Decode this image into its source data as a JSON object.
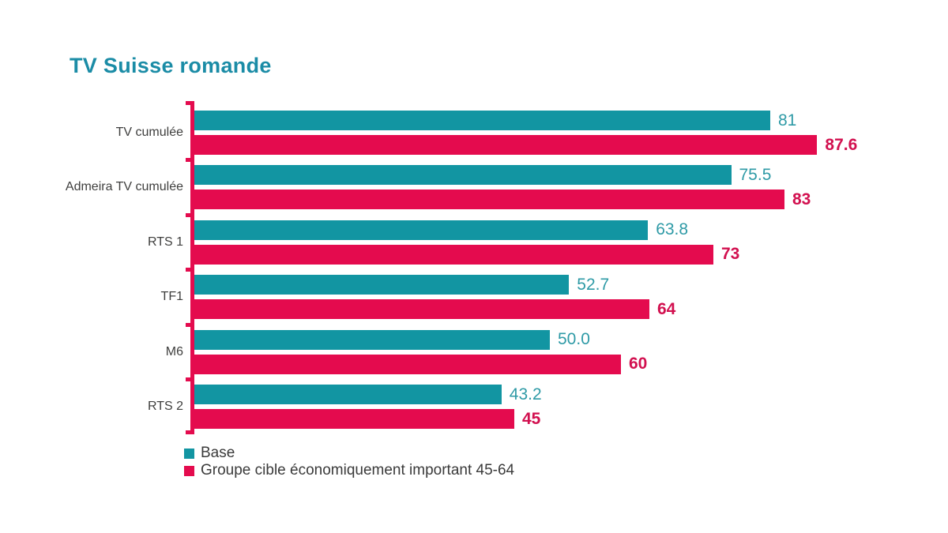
{
  "title": "TV Suisse romande",
  "colors": {
    "title_teal": "#1B8CA6",
    "bar_teal": "#1295A2",
    "bar_red": "#E40B4E",
    "axis_red": "#E40B4E",
    "value_teal": "#2E9AA6",
    "value_red": "#D2104F",
    "category_text": "#3F3F3E",
    "legend_text": "#3A3A3A"
  },
  "chart_data": {
    "type": "bar",
    "orientation": "horizontal",
    "title": "TV Suisse romande",
    "categories": [
      "TV cumulée",
      "Admeira TV cumulée",
      "RTS 1",
      "TF1",
      "M6",
      "RTS 2"
    ],
    "series": [
      {
        "name": "Base",
        "color": "#1295A2",
        "values": [
          81,
          75.5,
          63.8,
          52.7,
          50,
          43.2
        ],
        "labels": [
          "81",
          "75.5",
          "63.8",
          "52.7",
          "50.0",
          "43.2"
        ]
      },
      {
        "name": "Groupe cible économiquement important 45-64",
        "color": "#E40B4E",
        "values": [
          87.6,
          83,
          73,
          64,
          60,
          45
        ],
        "labels": [
          "87.6",
          "83",
          "73",
          "64",
          "60",
          "45"
        ]
      }
    ],
    "xlim": [
      0,
      100
    ],
    "grid": false,
    "legend_position": "bottom-left"
  },
  "legend": {
    "items": [
      {
        "label": "Base"
      },
      {
        "label": "Groupe cible économiquement important 45-64"
      }
    ]
  }
}
